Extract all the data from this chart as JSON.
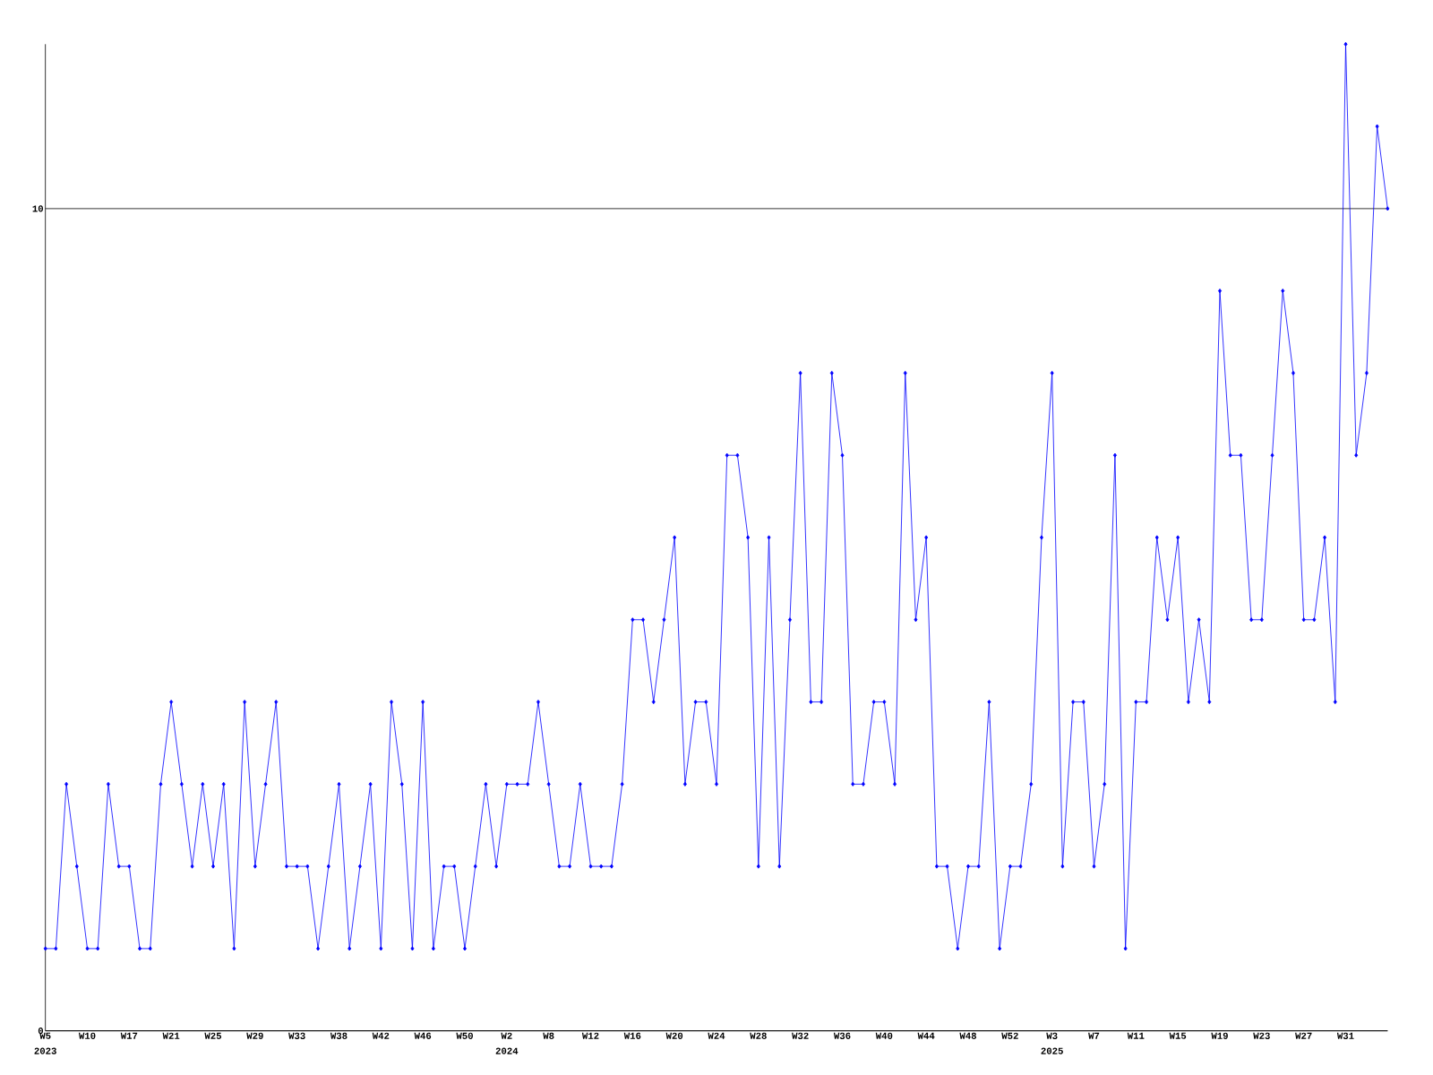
{
  "chart_data": {
    "type": "line",
    "categories": [
      "W5",
      null,
      null,
      null,
      "W10",
      null,
      null,
      null,
      "W17",
      null,
      null,
      null,
      "W21",
      null,
      null,
      null,
      "W25",
      null,
      null,
      null,
      "W29",
      null,
      null,
      null,
      "W33",
      null,
      null,
      null,
      "W38",
      null,
      null,
      null,
      "W42",
      null,
      null,
      null,
      "W46",
      null,
      null,
      null,
      "W50",
      null,
      null,
      null,
      "W2",
      null,
      null,
      null,
      "W8",
      null,
      null,
      null,
      "W12",
      null,
      null,
      null,
      "W16",
      null,
      null,
      null,
      "W20",
      null,
      null,
      null,
      "W24",
      null,
      null,
      null,
      "W28",
      null,
      null,
      null,
      "W32",
      null,
      null,
      null,
      "W36",
      null,
      null,
      null,
      "W40",
      null,
      null,
      null,
      "W44",
      null,
      null,
      null,
      "W48",
      null,
      null,
      null,
      "W52",
      null,
      null,
      null,
      "W3",
      null,
      null,
      null,
      "W7",
      null,
      null,
      null,
      "W11",
      null,
      null,
      null,
      "W15",
      null,
      null,
      null,
      "W19",
      null,
      null,
      null,
      "W23",
      null,
      null,
      null,
      "W27",
      null,
      null,
      null,
      "W31",
      null,
      null,
      null,
      null
    ],
    "values": [
      1,
      1,
      3,
      2,
      1,
      1,
      3,
      2,
      2,
      1,
      1,
      3,
      4,
      3,
      2,
      3,
      2,
      3,
      1,
      4,
      2,
      3,
      4,
      2,
      2,
      2,
      1,
      2,
      3,
      1,
      2,
      3,
      1,
      4,
      3,
      1,
      4,
      1,
      2,
      2,
      1,
      2,
      3,
      2,
      3,
      3,
      3,
      4,
      3,
      2,
      2,
      3,
      2,
      2,
      2,
      3,
      5,
      5,
      4,
      5,
      6,
      3,
      4,
      4,
      3,
      7,
      7,
      6,
      2,
      6,
      2,
      5,
      8,
      4,
      4,
      8,
      7,
      3,
      3,
      4,
      4,
      3,
      8,
      5,
      6,
      2,
      2,
      1,
      2,
      2,
      4,
      1,
      2,
      2,
      3,
      6,
      8,
      2,
      4,
      4,
      2,
      3,
      7,
      1,
      4,
      4,
      6,
      5,
      6,
      4,
      5,
      4,
      9,
      7,
      7,
      5,
      5,
      7,
      9,
      8,
      5,
      5,
      6,
      4,
      12,
      7,
      8,
      11,
      10
    ],
    "color": "#0000ff",
    "marker": "diamond",
    "line_style": "solid",
    "ylim": [
      0,
      12
    ],
    "yticks": [
      0,
      10
    ],
    "grid": "y",
    "annotations": [
      "2023",
      "2024",
      "2025"
    ]
  }
}
